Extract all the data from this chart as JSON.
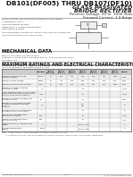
{
  "title": "DB101(DF005) THRU DB107(DF10)",
  "subtitle1": "GLASS PASSIVATED",
  "subtitle2": "BRIDGE RECTIFIER",
  "spec1": "Reverse Voltage: 50 to  1000 Volts",
  "spec2": "Forward Current: 1.0 Amps",
  "bg_color": "#ffffff",
  "mech_title": "MECHANICAL DATA",
  "elec_title": "MAXIMUM RATINGS AND ELECTRICAL CHARACTERISTICS",
  "note_text": "Rating at 25°C ambient temperature unless otherwise specified. Single phase, half wave, 60Hz, resistive or inductive\nload. For capacitive load derate current by 20%.",
  "features": [
    "Plastic package has low thermal resistance Flammability:",
    "Classification: 94V-0",
    "Glass passivated junction",
    "Rating at 25°C ambient temperature",
    "High switching speed",
    "T&R terminations conform to ANSI/EIA STD 006 and 13000/0002",
    "Conforms to JEDEC DO-15 (axial lead)"
  ],
  "mech_items": [
    "Case: SMA molded plastic case",
    "Body: 5.0×4.6mm (ax lead mount)",
    "Terminals: Tinned leads solderable per MIL-STD-750 method 2026",
    "Mounting: Any",
    "Weight: 0.08oz, 0.3gms"
  ],
  "col_labels": [
    "",
    "SYMBOL",
    "DB101\n(DF005)",
    "DB102\n(DF01)",
    "DB103\n(DF02)",
    "DB104\n(DF04)",
    "DB105\n(DF06)",
    "DB106\n(DF08)",
    "DB107\n(DF10)",
    "UNITS"
  ],
  "table_rows": [
    [
      "Maximum Recurrent Peak\nReverse Voltage",
      "VRRM",
      "50",
      "100",
      "200",
      "400",
      "600",
      "800",
      "1000",
      "Volts"
    ],
    [
      "Maximum RMS Voltage",
      "VRMS",
      "35",
      "70",
      "140",
      "280",
      "420",
      "560",
      "700",
      "Volts"
    ],
    [
      "Maximum DC Blocking Voltage",
      "VDC",
      "50",
      "100",
      "200",
      "400",
      "600",
      "800",
      "1000",
      "Volts"
    ],
    [
      "Maximum Average Forward\nRectified Current",
      "Io",
      "",
      "",
      "",
      "1.0",
      "",
      "",
      "",
      "Amps"
    ],
    [
      "Peak Forward Surge Current 8.3ms\nsingle half sine-wave superimposed\non rated load (JEDEC method)",
      "IFSM",
      "",
      "",
      "",
      "35",
      "",
      "",
      "",
      "Amps"
    ],
    [
      "Maximum Forward Voltage Drop\nat rated current",
      "VF",
      "",
      "",
      "",
      "1.1",
      "",
      "",
      "",
      "Volts"
    ],
    [
      "Maximum DC Reverse Current\nat rated DC Blocking Voltage\nat 25°C\nat 100°C",
      "IR",
      "",
      "",
      "",
      "5.0\n100",
      "",
      "",
      "",
      "µA"
    ],
    [
      "Maximum Junction Capacitance\nat rated dc Blocking Voltage",
      "Cj",
      "",
      "",
      "",
      "15",
      "",
      "",
      "",
      "pF"
    ],
    [
      "Typical Thermal Resistance\nJunction to Ambient",
      "RθJA",
      "",
      "",
      "",
      "50",
      "",
      "",
      "",
      "°C/W"
    ],
    [
      "Typical Thermal Resistance\nJunction to Lead",
      "RθJL",
      "",
      "",
      "",
      "20",
      "",
      "",
      "",
      "°C/W"
    ],
    [
      "Operating Junction Temperature\nRange",
      "TJ",
      "",
      "",
      "",
      "-55 to +150",
      "",
      "",
      "",
      "°C"
    ],
    [
      "Storage Temperature\nRange",
      "TSTG",
      "",
      "",
      "",
      "-55 to +150",
      "",
      "",
      "",
      "°C"
    ]
  ],
  "footer_lines": [
    "Note: 1. Measured at 1.0MHz and applied reverse voltage of 4.0 Volts.",
    "       2. Thermal resistance junction to ambient mounted on PCB, 8  lead through (3.81 x 8mm) copper area."
  ],
  "company": "DIOTEC SEMICONDUCTOR CO., LTD.",
  "page_num": "13-85",
  "website": "HTTP://  WWW.DIOTECSEMI.COM"
}
